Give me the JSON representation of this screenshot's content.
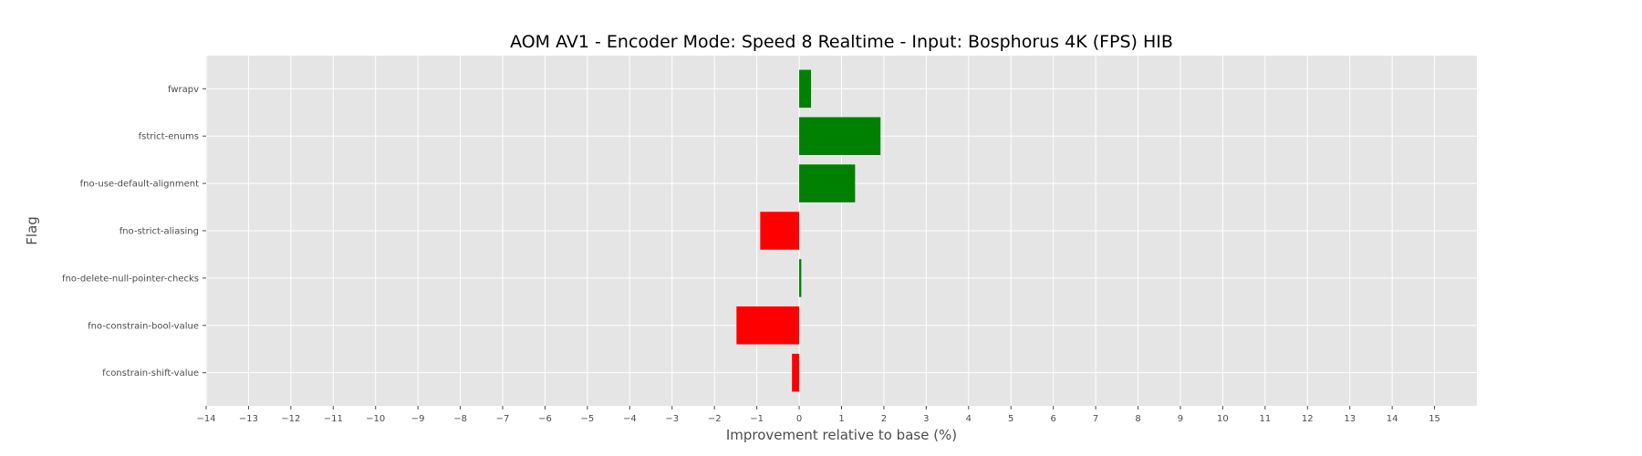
{
  "chart_data": {
    "type": "bar",
    "orientation": "horizontal",
    "title": "AOM AV1 - Encoder Mode: Speed 8 Realtime - Input: Bosphorus 4K (FPS) HIB",
    "xlabel": "Improvement relative to base (%)",
    "ylabel": "Flag",
    "xlim": [
      -14,
      16
    ],
    "xticks": [
      -14,
      -13,
      -12,
      -11,
      -10,
      -9,
      -8,
      -7,
      -6,
      -5,
      -4,
      -3,
      -2,
      -1,
      0,
      1,
      2,
      3,
      4,
      5,
      6,
      7,
      8,
      9,
      10,
      11,
      12,
      13,
      14,
      15
    ],
    "grid": true,
    "categories": [
      "fwrapv",
      "fstrict-enums",
      "fno-use-default-alignment",
      "fno-strict-aliasing",
      "fno-delete-null-pointer-checks",
      "fno-constrain-bool-value",
      "fconstrain-shift-value"
    ],
    "values": [
      0.28,
      1.92,
      1.32,
      -0.92,
      0.05,
      -1.48,
      -0.17
    ],
    "colors": {
      "positive": "#008000",
      "negative": "#ff0000",
      "plot_background": "#e5e5e5",
      "grid": "#ffffff"
    }
  }
}
